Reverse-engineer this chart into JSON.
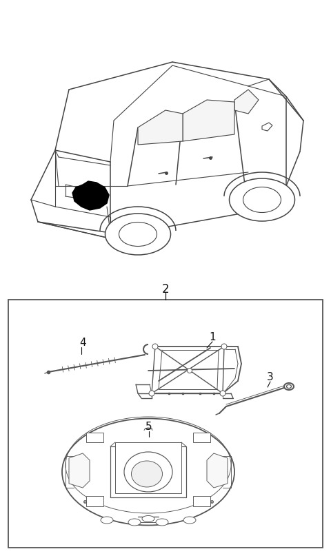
{
  "title": "",
  "background_color": "#ffffff",
  "border_color": "#555555",
  "text_color": "#111111",
  "fig_width": 4.8,
  "fig_height": 8.1,
  "dpi": 100,
  "label_2": "2",
  "label_1": "1",
  "label_3": "3",
  "label_4": "4",
  "label_5": "5",
  "lc": "#444444",
  "plc": "#555555",
  "highlight": "#000000"
}
